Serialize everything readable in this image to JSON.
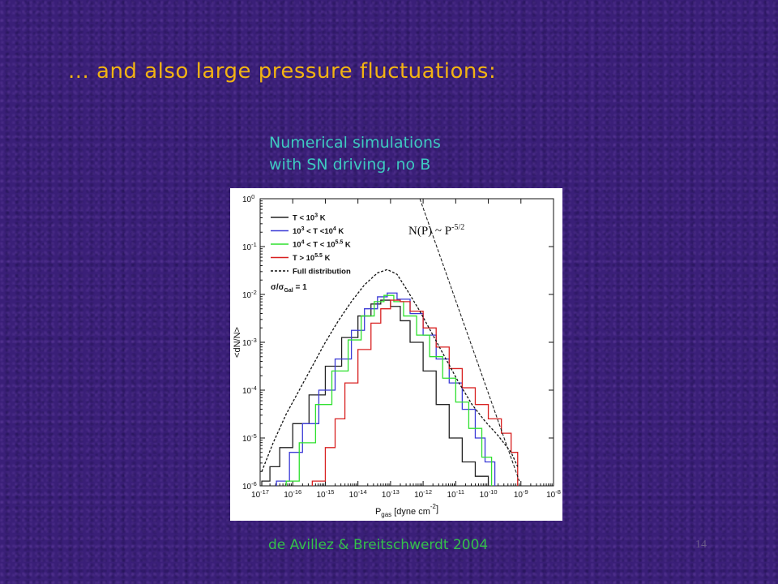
{
  "slide": {
    "title": "... and also large pressure fluctuations:",
    "subtitle_line1": "Numerical simulations",
    "subtitle_line2": "with SN driving, no B",
    "citation": "de Avillez & Breitschwerdt 2004",
    "slide_number": "14"
  },
  "colors": {
    "background": "#3a1f78",
    "title": "#f2b313",
    "subtitle": "#3ec9c0",
    "citation": "#34c04a"
  },
  "chart_data": {
    "type": "line",
    "xscale": "log",
    "yscale": "log",
    "xlim": [
      -17,
      -8
    ],
    "ylim": [
      -6,
      0
    ],
    "x_ticks": [
      "10-17",
      "10-16",
      "10-15",
      "10-14",
      "10-13",
      "10-12",
      "10-11",
      "10-10",
      "10-9",
      "10-8"
    ],
    "y_ticks": [
      "10-6",
      "10-5",
      "10-4",
      "10-3",
      "10-2",
      "10-1",
      "100"
    ],
    "xlabel": "Pgas [dyne cm-2]",
    "ylabel": "<dN/N>",
    "legend_position": "top-left",
    "legend_note": "σ/σGal = 1",
    "annotation": "N(P) ~ P-5/2",
    "series": [
      {
        "name": "T < 10^3 K",
        "color": "#222222",
        "style": "step",
        "x": [
          -16.95,
          -16.7,
          -16.4,
          -16.0,
          -15.5,
          -15.0,
          -14.5,
          -14.0,
          -13.6,
          -13.3,
          -13.0,
          -12.7,
          -12.4,
          -12.0,
          -11.6,
          -11.2,
          -10.8,
          -10.4,
          -10.0
        ],
        "y": [
          -5.9,
          -5.6,
          -5.2,
          -4.7,
          -4.1,
          -3.5,
          -2.9,
          -2.45,
          -2.2,
          -2.12,
          -2.25,
          -2.55,
          -3.0,
          -3.6,
          -4.3,
          -5.0,
          -5.5,
          -5.8,
          -5.9
        ]
      },
      {
        "name": "10^3 < T < 10^4 K",
        "color": "#3b3bd6",
        "style": "step",
        "x": [
          -16.5,
          -16.1,
          -15.7,
          -15.2,
          -14.7,
          -14.2,
          -13.8,
          -13.4,
          -13.1,
          -12.8,
          -12.4,
          -12.0,
          -11.6,
          -11.2,
          -10.8,
          -10.4,
          -10.1,
          -9.8
        ],
        "y": [
          -5.9,
          -5.3,
          -4.7,
          -4.0,
          -3.35,
          -2.75,
          -2.3,
          -2.05,
          -1.97,
          -2.1,
          -2.4,
          -2.85,
          -3.35,
          -3.85,
          -4.4,
          -5.0,
          -5.5,
          -5.9
        ]
      },
      {
        "name": "10^4 < T < 10^5.5 K",
        "color": "#2ee02e",
        "style": "step",
        "x": [
          -16.2,
          -15.8,
          -15.3,
          -14.8,
          -14.3,
          -13.9,
          -13.5,
          -13.2,
          -12.9,
          -12.6,
          -12.2,
          -11.8,
          -11.4,
          -11.0,
          -10.6,
          -10.2,
          -9.9
        ],
        "y": [
          -5.9,
          -5.1,
          -4.3,
          -3.6,
          -2.95,
          -2.45,
          -2.15,
          -2.02,
          -2.15,
          -2.45,
          -2.85,
          -3.3,
          -3.75,
          -4.25,
          -4.8,
          -5.4,
          -5.9
        ]
      },
      {
        "name": "T > 10^5.5 K",
        "color": "#d82020",
        "style": "step",
        "x": [
          -15.4,
          -15.0,
          -14.7,
          -14.4,
          -14.0,
          -13.6,
          -13.3,
          -13.0,
          -12.7,
          -12.4,
          -12.0,
          -11.6,
          -11.2,
          -10.8,
          -10.4,
          -10.0,
          -9.6,
          -9.3,
          -9.1
        ],
        "y": [
          -5.9,
          -5.2,
          -4.6,
          -3.85,
          -3.15,
          -2.6,
          -2.3,
          -2.12,
          -2.15,
          -2.35,
          -2.7,
          -3.1,
          -3.55,
          -3.95,
          -4.3,
          -4.6,
          -4.9,
          -5.3,
          -5.6
        ]
      },
      {
        "name": "Full distribution",
        "color": "#111111",
        "style": "dashed",
        "x": [
          -16.95,
          -16.6,
          -16.2,
          -15.8,
          -15.4,
          -15.0,
          -14.6,
          -14.2,
          -13.8,
          -13.4,
          -13.1,
          -12.8,
          -12.5,
          -12.1,
          -11.7,
          -11.3,
          -10.9,
          -10.5,
          -10.1,
          -9.7,
          -9.3,
          -9.1
        ],
        "y": [
          -5.7,
          -5.1,
          -4.5,
          -4.0,
          -3.5,
          -3.0,
          -2.55,
          -2.15,
          -1.8,
          -1.55,
          -1.48,
          -1.58,
          -1.9,
          -2.35,
          -2.85,
          -3.35,
          -3.85,
          -4.3,
          -4.65,
          -4.95,
          -5.3,
          -5.6
        ]
      }
    ],
    "powerlaw_line": {
      "x": [
        -12.1,
        -9.05
      ],
      "y": [
        0,
        -5.9
      ],
      "style": "dashed",
      "color": "#111111"
    }
  }
}
